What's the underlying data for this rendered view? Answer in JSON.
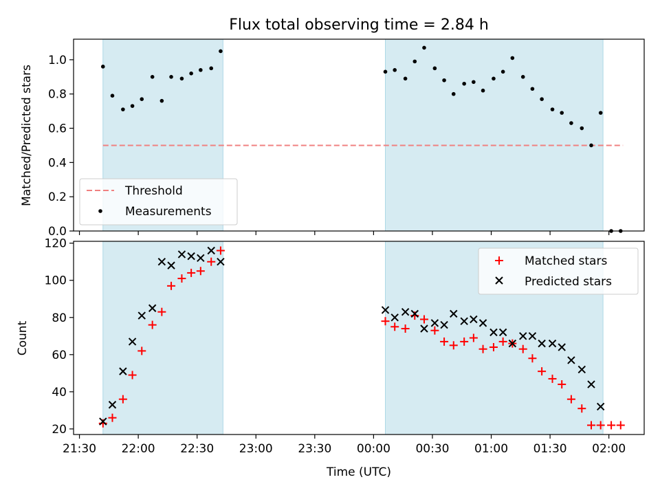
{
  "chart_data": [
    {
      "type": "scatter",
      "title": "Flux total observing time = 2.84 h",
      "ylabel": "Matched/Predicted stars",
      "xlabel": "",
      "x_unit": "time (UTC), hours past midnight of first night",
      "xlim": [
        21.45,
        26.3
      ],
      "ylim": [
        0,
        1.12
      ],
      "y_ticks": [
        0.0,
        0.2,
        0.4,
        0.6,
        0.8,
        1.0
      ],
      "y_tick_labels": [
        "0.0",
        "0.2",
        "0.4",
        "0.6",
        "0.8",
        "1.0"
      ],
      "shaded_intervals": [
        [
          21.7,
          22.72
        ],
        [
          24.1,
          25.95
        ]
      ],
      "threshold": {
        "name": "Threshold",
        "value": 0.5,
        "x_range": [
          21.7,
          26.12
        ],
        "color": "#f08080"
      },
      "measurements": {
        "name": "Measurements",
        "color": "#000000",
        "x": [
          21.7,
          21.78,
          21.87,
          21.95,
          22.03,
          22.12,
          22.2,
          22.28,
          22.37,
          22.45,
          22.53,
          22.62,
          22.7,
          24.1,
          24.18,
          24.27,
          24.35,
          24.43,
          24.52,
          24.6,
          24.68,
          24.77,
          24.85,
          24.93,
          25.02,
          25.1,
          25.18,
          25.27,
          25.35,
          25.43,
          25.52,
          25.6,
          25.68,
          25.77,
          25.85,
          25.93,
          26.02,
          26.1
        ],
        "y": [
          0.96,
          0.79,
          0.71,
          0.73,
          0.77,
          0.9,
          0.76,
          0.9,
          0.89,
          0.92,
          0.94,
          0.95,
          1.05,
          0.93,
          0.94,
          0.89,
          0.99,
          1.07,
          0.95,
          0.88,
          0.8,
          0.86,
          0.87,
          0.82,
          0.89,
          0.93,
          1.01,
          0.9,
          0.83,
          0.77,
          0.71,
          0.69,
          0.63,
          0.6,
          0.5,
          0.69,
          0.0,
          0.0
        ]
      },
      "legend": {
        "placement": "lower-left",
        "entries": [
          "Threshold",
          "Measurements"
        ]
      }
    },
    {
      "type": "scatter",
      "title": "",
      "ylabel": "Count",
      "xlabel": "Time (UTC)",
      "x_unit": "time (UTC), hours past midnight of first night",
      "xlim": [
        21.45,
        26.3
      ],
      "ylim": [
        17,
        121
      ],
      "y_ticks": [
        20,
        40,
        60,
        80,
        100,
        120
      ],
      "y_tick_labels": [
        "20",
        "40",
        "60",
        "80",
        "100",
        "120"
      ],
      "x_ticks": [
        21.5,
        22.0,
        22.5,
        23.0,
        23.5,
        24.0,
        24.5,
        25.0,
        25.5,
        26.0
      ],
      "x_tick_labels": [
        "21:30",
        "22:00",
        "22:30",
        "23:00",
        "23:30",
        "00:00",
        "00:30",
        "01:00",
        "01:30",
        "02:00"
      ],
      "shaded_intervals": [
        [
          21.7,
          22.72
        ],
        [
          24.1,
          25.95
        ]
      ],
      "series": [
        {
          "name": "Matched stars",
          "marker": "plus",
          "color": "#ff0000",
          "x": [
            21.7,
            21.78,
            21.87,
            21.95,
            22.03,
            22.12,
            22.2,
            22.28,
            22.37,
            22.45,
            22.53,
            22.62,
            22.7,
            24.1,
            24.18,
            24.27,
            24.35,
            24.43,
            24.52,
            24.6,
            24.68,
            24.77,
            24.85,
            24.93,
            25.02,
            25.1,
            25.18,
            25.27,
            25.35,
            25.43,
            25.52,
            25.6,
            25.68,
            25.77,
            25.85,
            25.93,
            26.02,
            26.1
          ],
          "y": [
            23,
            26,
            36,
            49,
            62,
            76,
            83,
            97,
            101,
            104,
            105,
            110,
            116,
            78,
            75,
            74,
            81,
            79,
            73,
            67,
            65,
            67,
            69,
            63,
            64,
            67,
            66,
            63,
            58,
            51,
            47,
            44,
            36,
            31,
            22,
            22,
            22,
            22
          ]
        },
        {
          "name": "Predicted stars",
          "marker": "x",
          "color": "#000000",
          "x": [
            21.7,
            21.78,
            21.87,
            21.95,
            22.03,
            22.12,
            22.2,
            22.28,
            22.37,
            22.45,
            22.53,
            22.62,
            22.7,
            24.1,
            24.18,
            24.27,
            24.35,
            24.43,
            24.52,
            24.6,
            24.68,
            24.77,
            24.85,
            24.93,
            25.02,
            25.1,
            25.18,
            25.27,
            25.35,
            25.43,
            25.52,
            25.6,
            25.68,
            25.77,
            25.85,
            25.93
          ],
          "y": [
            24,
            33,
            51,
            67,
            81,
            85,
            110,
            108,
            114,
            113,
            112,
            116,
            110,
            84,
            80,
            83,
            82,
            74,
            77,
            76,
            82,
            78,
            79,
            77,
            72,
            72,
            66,
            70,
            70,
            66,
            66,
            64,
            57,
            52,
            44,
            32
          ]
        }
      ],
      "legend": {
        "placement": "upper-right",
        "entries": [
          "Matched stars",
          "Predicted stars"
        ]
      }
    }
  ]
}
